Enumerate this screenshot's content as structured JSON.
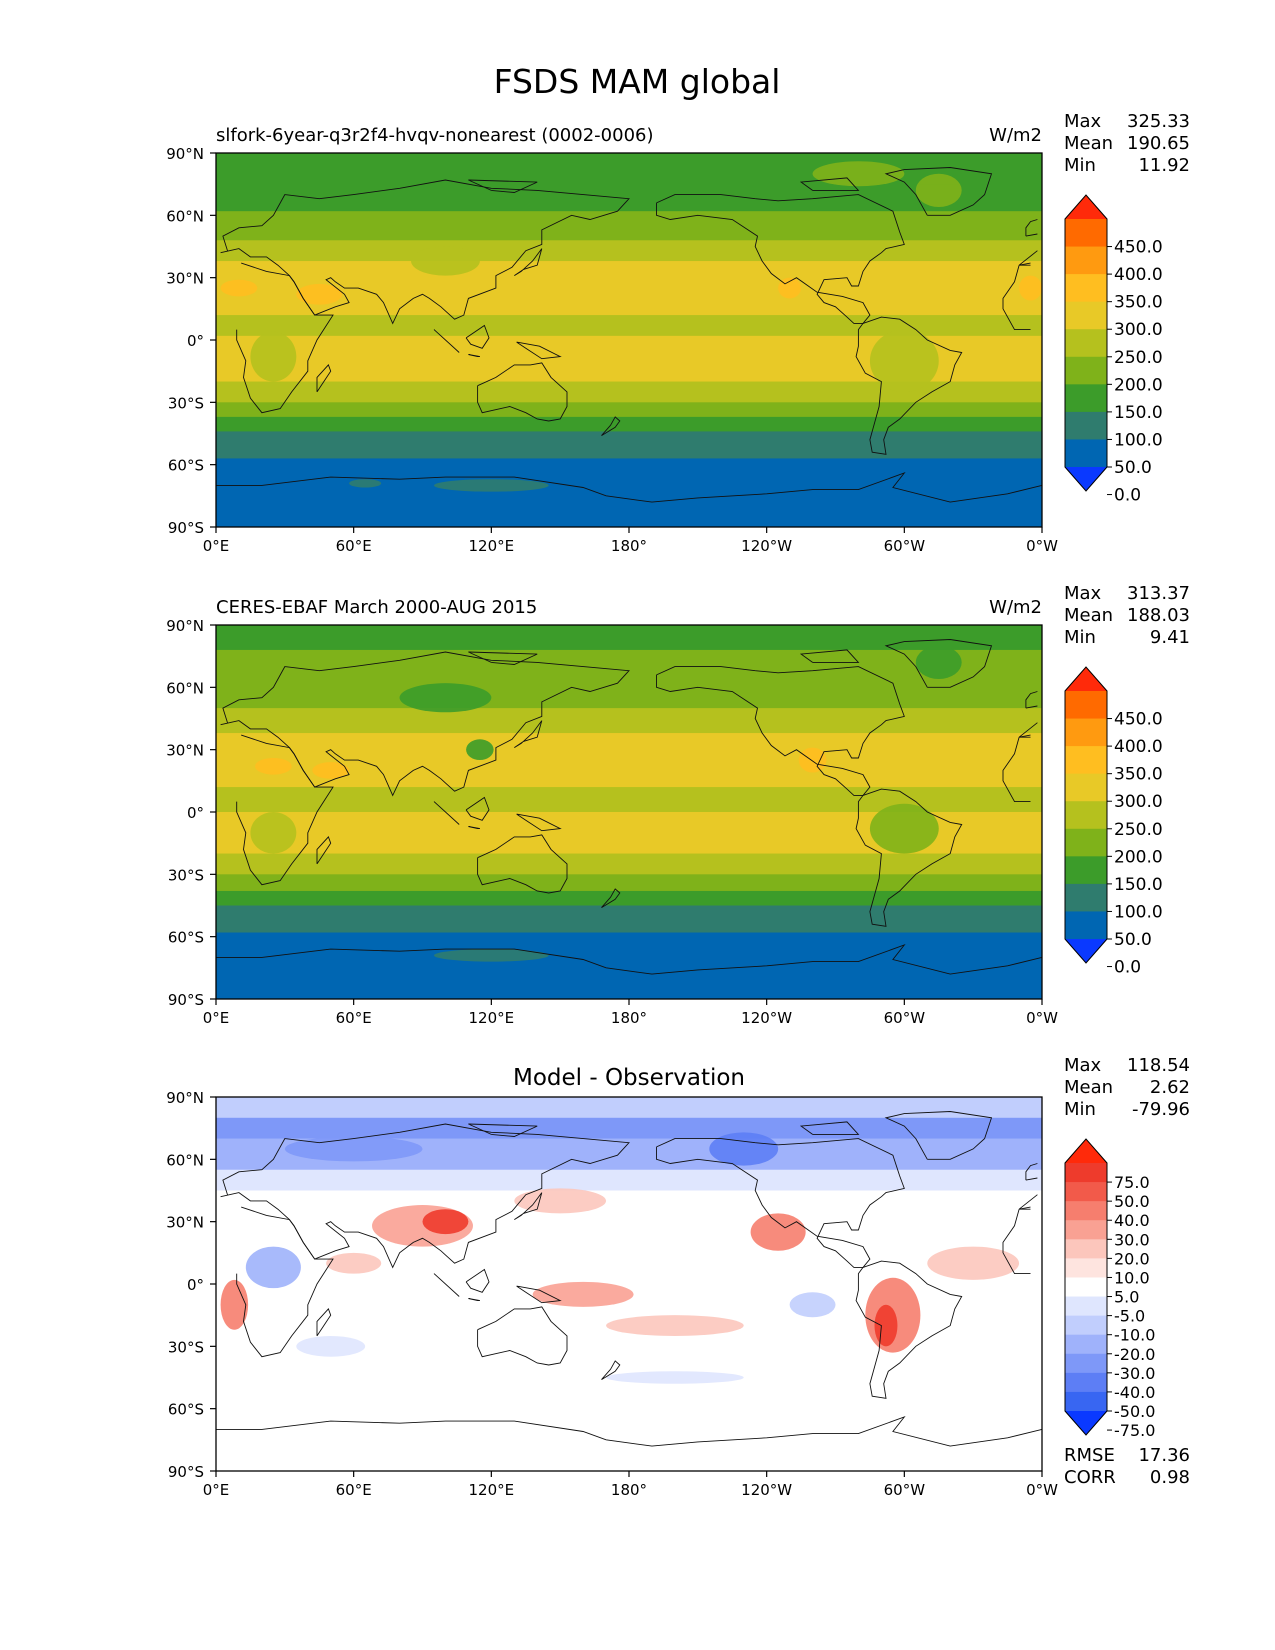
{
  "figure": {
    "title": "FSDS MAM global"
  },
  "axes": {
    "lat_ticks": [
      "90°N",
      "60°N",
      "30°N",
      "0°",
      "30°S",
      "60°S",
      "90°S"
    ],
    "lon_ticks": [
      "0°E",
      "60°E",
      "120°E",
      "180°",
      "120°W",
      "60°W",
      "0°W"
    ]
  },
  "panels": [
    {
      "id": "model",
      "title": "slfork-6year-q3r2f4-hvqv-nonearest (0002-0006)",
      "units": "W/m2",
      "stats": [
        {
          "label": "Max",
          "value": "325.33"
        },
        {
          "label": "Mean",
          "value": "190.65"
        },
        {
          "label": "Min",
          "value": "11.92"
        }
      ],
      "colorbar": {
        "levels": [
          "450.0",
          "400.0",
          "350.0",
          "300.0",
          "250.0",
          "200.0",
          "150.0",
          "100.0",
          "50.0",
          "0.0"
        ],
        "colors": [
          "#ff2a0a",
          "#ff6a00",
          "#ff9a10",
          "#ffbe20",
          "#e8c927",
          "#b5c11e",
          "#7fb21a",
          "#3c9c2a",
          "#2f7c6e",
          "#0066b2",
          "#0a39ff"
        ]
      },
      "bands": [
        {
          "lat": [
            90,
            75
          ],
          "color": "#3c9c2a"
        },
        {
          "lat": [
            75,
            62
          ],
          "color": "#3c9c2a"
        },
        {
          "lat": [
            62,
            48
          ],
          "color": "#7fb21a"
        },
        {
          "lat": [
            48,
            38
          ],
          "color": "#b5c11e"
        },
        {
          "lat": [
            38,
            12
          ],
          "color": "#e8c927"
        },
        {
          "lat": [
            12,
            2
          ],
          "color": "#b5c11e"
        },
        {
          "lat": [
            2,
            -20
          ],
          "color": "#e8c927"
        },
        {
          "lat": [
            -20,
            -30
          ],
          "color": "#b5c11e"
        },
        {
          "lat": [
            -30,
            -37
          ],
          "color": "#7fb21a"
        },
        {
          "lat": [
            -37,
            -44
          ],
          "color": "#3c9c2a"
        },
        {
          "lat": [
            -44,
            -57
          ],
          "color": "#2f7c6e"
        },
        {
          "lat": [
            -57,
            -90
          ],
          "color": "#0066b2"
        }
      ],
      "patches": [
        {
          "lon": 10,
          "lat": 25,
          "rx": 8,
          "ry": 4,
          "color": "#ffbe20"
        },
        {
          "lon": 45,
          "lat": 22,
          "rx": 10,
          "ry": 5,
          "color": "#ffbe20"
        },
        {
          "lon": 250,
          "lat": 25,
          "rx": 5,
          "ry": 5,
          "color": "#ffbe20"
        },
        {
          "lon": 355,
          "lat": 25,
          "rx": 5,
          "ry": 6,
          "color": "#ffbe20"
        },
        {
          "lon": 100,
          "lat": 38,
          "rx": 15,
          "ry": 7,
          "color": "#b5c11e"
        },
        {
          "lon": 280,
          "lat": 80,
          "rx": 20,
          "ry": 6,
          "color": "#7fb21a"
        },
        {
          "lon": 315,
          "lat": 72,
          "rx": 10,
          "ry": 8,
          "color": "#7fb21a"
        },
        {
          "lon": 120,
          "lat": -70,
          "rx": 25,
          "ry": 3,
          "color": "#2f7c6e"
        },
        {
          "lon": 65,
          "lat": -69,
          "rx": 7,
          "ry": 2,
          "color": "#2f7c6e"
        },
        {
          "lon": 25,
          "lat": -8,
          "rx": 10,
          "ry": 12,
          "color": "#b5c11e"
        },
        {
          "lon": 300,
          "lat": -10,
          "rx": 15,
          "ry": 15,
          "color": "#b5c11e"
        }
      ]
    },
    {
      "id": "obs",
      "title": "CERES-EBAF March 2000-AUG 2015",
      "units": "W/m2",
      "stats": [
        {
          "label": "Max",
          "value": "313.37"
        },
        {
          "label": "Mean",
          "value": "188.03"
        },
        {
          "label": "Min",
          "value": "9.41"
        }
      ],
      "colorbar": {
        "levels": [
          "450.0",
          "400.0",
          "350.0",
          "300.0",
          "250.0",
          "200.0",
          "150.0",
          "100.0",
          "50.0",
          "0.0"
        ],
        "colors": [
          "#ff2a0a",
          "#ff6a00",
          "#ff9a10",
          "#ffbe20",
          "#e8c927",
          "#b5c11e",
          "#7fb21a",
          "#3c9c2a",
          "#2f7c6e",
          "#0066b2",
          "#0a39ff"
        ]
      },
      "bands": [
        {
          "lat": [
            90,
            78
          ],
          "color": "#3c9c2a"
        },
        {
          "lat": [
            78,
            50
          ],
          "color": "#7fb21a"
        },
        {
          "lat": [
            50,
            38
          ],
          "color": "#b5c11e"
        },
        {
          "lat": [
            38,
            12
          ],
          "color": "#e8c927"
        },
        {
          "lat": [
            12,
            0
          ],
          "color": "#b5c11e"
        },
        {
          "lat": [
            0,
            -20
          ],
          "color": "#e8c927"
        },
        {
          "lat": [
            -20,
            -30
          ],
          "color": "#b5c11e"
        },
        {
          "lat": [
            -30,
            -38
          ],
          "color": "#7fb21a"
        },
        {
          "lat": [
            -38,
            -45
          ],
          "color": "#3c9c2a"
        },
        {
          "lat": [
            -45,
            -58
          ],
          "color": "#2f7c6e"
        },
        {
          "lat": [
            -58,
            -90
          ],
          "color": "#0066b2"
        }
      ],
      "patches": [
        {
          "lon": 25,
          "lat": 22,
          "rx": 8,
          "ry": 4,
          "color": "#ffbe20"
        },
        {
          "lon": 50,
          "lat": 20,
          "rx": 8,
          "ry": 4,
          "color": "#ffbe20"
        },
        {
          "lon": 115,
          "lat": 30,
          "rx": 6,
          "ry": 5,
          "color": "#3c9c2a"
        },
        {
          "lon": 260,
          "lat": 25,
          "rx": 6,
          "ry": 6,
          "color": "#ffbe20"
        },
        {
          "lon": 100,
          "lat": 55,
          "rx": 20,
          "ry": 7,
          "color": "#3c9c2a"
        },
        {
          "lon": 315,
          "lat": 72,
          "rx": 10,
          "ry": 8,
          "color": "#3c9c2a"
        },
        {
          "lon": 120,
          "lat": -69,
          "rx": 25,
          "ry": 3,
          "color": "#2f7c6e"
        },
        {
          "lon": 300,
          "lat": -8,
          "rx": 15,
          "ry": 12,
          "color": "#7fb21a"
        },
        {
          "lon": 25,
          "lat": -10,
          "rx": 10,
          "ry": 10,
          "color": "#b5c11e"
        }
      ]
    },
    {
      "id": "diff",
      "title": "Model - Observation",
      "units": "",
      "stats": [
        {
          "label": "Max",
          "value": "118.54"
        },
        {
          "label": "Mean",
          "value": "2.62"
        },
        {
          "label": "Min",
          "value": "-79.96"
        }
      ],
      "extra_stats": [
        {
          "label": "RMSE",
          "value": "17.36"
        },
        {
          "label": "CORR",
          "value": "0.98"
        }
      ],
      "colorbar": {
        "levels": [
          "75.0",
          "50.0",
          "40.0",
          "30.0",
          "20.0",
          "10.0",
          "5.0",
          "-5.0",
          "-10.0",
          "-20.0",
          "-30.0",
          "-40.0",
          "-50.0",
          "-75.0"
        ],
        "colors": [
          "#ff2a0a",
          "#ee3b2c",
          "#f25a4a",
          "#f67e6e",
          "#f9a193",
          "#fcc6bc",
          "#fee4df",
          "#ffffff",
          "#dfe6fe",
          "#c1cefd",
          "#9fb2fb",
          "#7e98f8",
          "#5d7ef5",
          "#3866f2",
          "#0a39ff"
        ]
      },
      "bands": [
        {
          "lat": [
            90,
            80
          ],
          "color": "#c1cefd"
        },
        {
          "lat": [
            80,
            70
          ],
          "color": "#7e98f8"
        },
        {
          "lat": [
            70,
            55
          ],
          "color": "#9fb2fb"
        },
        {
          "lat": [
            55,
            45
          ],
          "color": "#dfe6fe"
        },
        {
          "lat": [
            45,
            -90
          ],
          "color": "#ffffff"
        }
      ],
      "patches": [
        {
          "lon": 90,
          "lat": 28,
          "rx": 22,
          "ry": 10,
          "color": "#f9a193"
        },
        {
          "lon": 100,
          "lat": 30,
          "rx": 10,
          "ry": 6,
          "color": "#ee3b2c"
        },
        {
          "lon": 245,
          "lat": 25,
          "rx": 12,
          "ry": 9,
          "color": "#f67e6e"
        },
        {
          "lon": 295,
          "lat": -15,
          "rx": 12,
          "ry": 18,
          "color": "#f67e6e"
        },
        {
          "lon": 292,
          "lat": -20,
          "rx": 5,
          "ry": 10,
          "color": "#ee3b2c"
        },
        {
          "lon": 160,
          "lat": -5,
          "rx": 22,
          "ry": 6,
          "color": "#f9a193"
        },
        {
          "lon": 200,
          "lat": -20,
          "rx": 30,
          "ry": 5,
          "color": "#fcc6bc"
        },
        {
          "lon": 8,
          "lat": -10,
          "rx": 6,
          "ry": 12,
          "color": "#f67e6e"
        },
        {
          "lon": 25,
          "lat": 8,
          "rx": 12,
          "ry": 10,
          "color": "#9fb2fb"
        },
        {
          "lon": 50,
          "lat": -30,
          "rx": 15,
          "ry": 5,
          "color": "#dfe6fe"
        },
        {
          "lon": 60,
          "lat": 10,
          "rx": 12,
          "ry": 5,
          "color": "#fcc6bc"
        },
        {
          "lon": 260,
          "lat": -10,
          "rx": 10,
          "ry": 6,
          "color": "#c1cefd"
        },
        {
          "lon": 330,
          "lat": 10,
          "rx": 20,
          "ry": 8,
          "color": "#fcc6bc"
        },
        {
          "lon": 230,
          "lat": 65,
          "rx": 15,
          "ry": 8,
          "color": "#5d7ef5"
        },
        {
          "lon": 60,
          "lat": 65,
          "rx": 30,
          "ry": 6,
          "color": "#7e98f8"
        },
        {
          "lon": 150,
          "lat": 40,
          "rx": 20,
          "ry": 6,
          "color": "#fcc6bc"
        },
        {
          "lon": 200,
          "lat": -45,
          "rx": 30,
          "ry": 3,
          "color": "#dfe6fe"
        }
      ]
    }
  ]
}
